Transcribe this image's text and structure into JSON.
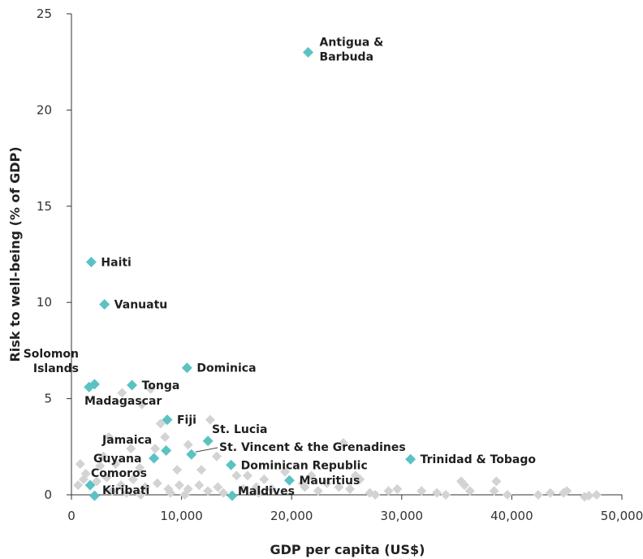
{
  "chart_data": {
    "type": "scatter",
    "title": "",
    "xlabel": "GDP per capita (US$)",
    "ylabel": "Risk to well-being (% of GDP)",
    "xlim": [
      0,
      50000
    ],
    "ylim": [
      0,
      25
    ],
    "x_ticks": [
      0,
      10000,
      20000,
      30000,
      40000,
      50000
    ],
    "x_tick_labels": [
      "0",
      "10,000",
      "20,000",
      "30,000",
      "40,000",
      "50,000"
    ],
    "y_ticks": [
      0,
      5,
      10,
      15,
      20,
      25
    ],
    "y_tick_labels": [
      "0",
      "5",
      "10",
      "15",
      "20",
      "25"
    ],
    "grid": false,
    "legend": "none",
    "colors": {
      "highlight": "#5bc2c4",
      "other": "#d3d3d3",
      "axis": "#333333"
    },
    "highlighted": [
      {
        "name": "Antigua & Barbuda",
        "lines": [
          "Antigua &",
          "Barbuda"
        ],
        "x": 21500,
        "y": 23.0
      },
      {
        "name": "Haiti",
        "lines": [
          "Haiti"
        ],
        "x": 1800,
        "y": 12.1
      },
      {
        "name": "Vanuatu",
        "lines": [
          "Vanuatu"
        ],
        "x": 3000,
        "y": 9.9
      },
      {
        "name": "Solomon Islands",
        "lines": [
          "Solomon",
          "Islands"
        ],
        "x": 2100,
        "y": 5.75
      },
      {
        "name": "Solomon Islands 2",
        "lines": [],
        "x": 1600,
        "y": 5.6
      },
      {
        "name": "Tonga",
        "lines": [
          "Tonga"
        ],
        "x": 5500,
        "y": 5.7
      },
      {
        "name": "Dominica",
        "lines": [
          "Dominica"
        ],
        "x": 10500,
        "y": 6.6
      },
      {
        "name": "Madagascar",
        "lines": [
          "Madagascar"
        ],
        "x": null,
        "y": null
      },
      {
        "name": "Fiji",
        "lines": [
          "Fiji"
        ],
        "x": 8700,
        "y": 3.9
      },
      {
        "name": "St. Lucia",
        "lines": [
          "St. Lucia"
        ],
        "x": 12400,
        "y": 2.8
      },
      {
        "name": "Jamaica",
        "lines": [
          "Jamaica"
        ],
        "x": 8600,
        "y": 2.3
      },
      {
        "name": "St. Vincent & the Grenadines",
        "lines": [
          "St. Vincent & the Grenadines"
        ],
        "x": 10900,
        "y": 2.1
      },
      {
        "name": "Guyana",
        "lines": [
          "Guyana"
        ],
        "x": 7500,
        "y": 1.9
      },
      {
        "name": "Trinidad & Tobago",
        "lines": [
          "Trinidad & Tobago"
        ],
        "x": 30800,
        "y": 1.85
      },
      {
        "name": "Dominican Republic",
        "lines": [
          "Dominican Republic"
        ],
        "x": 14500,
        "y": 1.55
      },
      {
        "name": "Comoros",
        "lines": [
          "Comoros"
        ],
        "x": null,
        "y": null
      },
      {
        "name": "Mauritius",
        "lines": [
          "Mauritius"
        ],
        "x": 19800,
        "y": 0.75
      },
      {
        "name": "Kiribati",
        "lines": [
          "Kiribati"
        ],
        "x": 1700,
        "y": 0.5
      },
      {
        "name": "Kiribati 2",
        "lines": [],
        "x": 2100,
        "y": -0.05
      },
      {
        "name": "Maldives",
        "lines": [
          "Maldives"
        ],
        "x": 14600,
        "y": -0.05
      }
    ],
    "others": [
      [
        4600,
        5.3
      ],
      [
        7200,
        5.5
      ],
      [
        6400,
        4.7
      ],
      [
        8100,
        3.7
      ],
      [
        8500,
        3.0
      ],
      [
        3400,
        3.0
      ],
      [
        12600,
        3.9
      ],
      [
        10600,
        2.6
      ],
      [
        13200,
        2.0
      ],
      [
        5400,
        2.4
      ],
      [
        7600,
        2.4
      ],
      [
        2900,
        2.0
      ],
      [
        11800,
        1.3
      ],
      [
        9600,
        1.3
      ],
      [
        6200,
        1.4
      ],
      [
        4000,
        1.6
      ],
      [
        2600,
        1.5
      ],
      [
        800,
        1.6
      ],
      [
        1300,
        1.1
      ],
      [
        16000,
        1.0
      ],
      [
        15000,
        1.0
      ],
      [
        17500,
        0.8
      ],
      [
        19400,
        1.2
      ],
      [
        21800,
        1.0
      ],
      [
        24700,
        2.7
      ],
      [
        25800,
        1.0
      ],
      [
        26200,
        0.8
      ],
      [
        23200,
        0.6
      ],
      [
        21000,
        0.6
      ],
      [
        600,
        0.5
      ],
      [
        1100,
        0.8
      ],
      [
        2300,
        0.7
      ],
      [
        3200,
        0.9
      ],
      [
        4500,
        0.5
      ],
      [
        5600,
        0.8
      ],
      [
        6700,
        0.4
      ],
      [
        7800,
        0.6
      ],
      [
        8800,
        0.3
      ],
      [
        9800,
        0.5
      ],
      [
        10600,
        0.3
      ],
      [
        11600,
        0.5
      ],
      [
        12400,
        0.2
      ],
      [
        13300,
        0.4
      ],
      [
        15600,
        0.3
      ],
      [
        16800,
        0.4
      ],
      [
        18200,
        0.3
      ],
      [
        21200,
        0.4
      ],
      [
        22400,
        0.2
      ],
      [
        24300,
        0.4
      ],
      [
        25300,
        0.3
      ],
      [
        27100,
        0.1
      ],
      [
        27600,
        0.0
      ],
      [
        28800,
        0.2
      ],
      [
        29600,
        0.3
      ],
      [
        31800,
        0.2
      ],
      [
        33200,
        0.1
      ],
      [
        34000,
        0.0
      ],
      [
        35400,
        0.7
      ],
      [
        35700,
        0.5
      ],
      [
        36200,
        0.2
      ],
      [
        38600,
        0.7
      ],
      [
        38400,
        0.2
      ],
      [
        39600,
        0.0
      ],
      [
        42400,
        0.0
      ],
      [
        43500,
        0.1
      ],
      [
        44700,
        0.1
      ],
      [
        45000,
        0.2
      ],
      [
        46600,
        -0.1
      ],
      [
        47000,
        -0.05
      ],
      [
        47700,
        0.0
      ],
      [
        3700,
        0.2
      ],
      [
        5000,
        0.1
      ],
      [
        6300,
        0.0
      ],
      [
        9000,
        0.1
      ],
      [
        10300,
        0.0
      ],
      [
        13800,
        0.1
      ],
      [
        17000,
        0.1
      ]
    ]
  }
}
